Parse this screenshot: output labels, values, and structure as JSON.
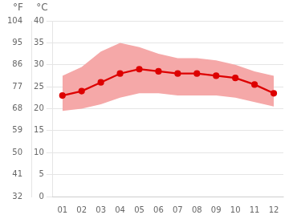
{
  "chart_data": {
    "type": "line",
    "categories": [
      "01",
      "02",
      "03",
      "04",
      "05",
      "06",
      "07",
      "08",
      "09",
      "10",
      "11",
      "12"
    ],
    "series": [
      {
        "type": "band",
        "color": "#f5a8a8",
        "low": [
          19.5,
          20.0,
          21.0,
          22.5,
          23.5,
          23.5,
          23.0,
          23.0,
          23.0,
          22.5,
          21.5,
          20.5
        ],
        "high": [
          27.5,
          29.5,
          33.0,
          35.0,
          34.0,
          32.5,
          31.5,
          31.5,
          31.0,
          30.0,
          28.5,
          27.5
        ]
      },
      {
        "type": "line",
        "color": "#dd0000",
        "marker": "circle",
        "values": [
          23.0,
          24.0,
          26.0,
          28.0,
          29.0,
          28.5,
          28.0,
          28.0,
          27.5,
          27.0,
          25.5,
          23.5
        ]
      }
    ],
    "ylabel": "°C",
    "ylim": [
      0,
      40
    ],
    "yticks": [
      0,
      5,
      10,
      15,
      20,
      25,
      30,
      35,
      40
    ],
    "y2label": "°F",
    "y2lim": [
      32,
      104
    ],
    "y2ticks": [
      32,
      41,
      50,
      59,
      68,
      77,
      86,
      95,
      104
    ],
    "grid": true
  }
}
